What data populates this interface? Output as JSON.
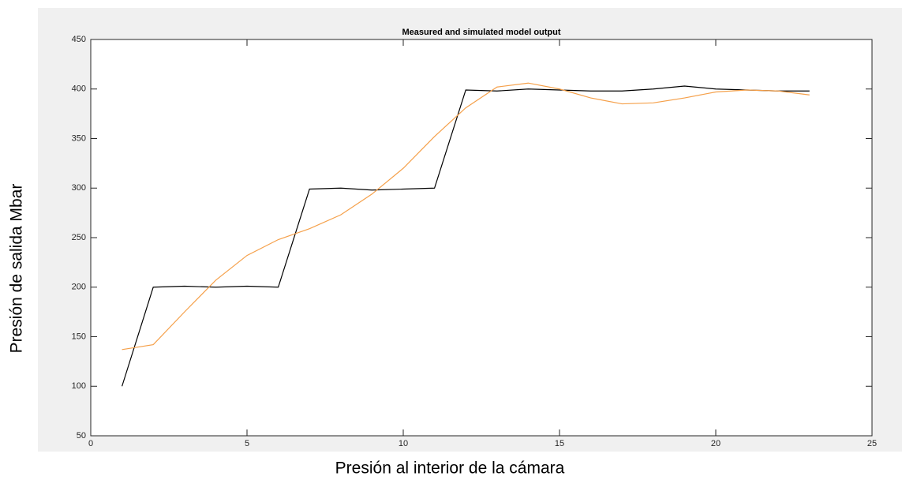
{
  "chart_data": {
    "type": "line",
    "title": "Measured and simulated model output",
    "xlabel": "Presión al interior de la cámara",
    "ylabel": "Presión de salida Mbar",
    "x": [
      1,
      2,
      3,
      4,
      5,
      6,
      7,
      8,
      9,
      10,
      11,
      12,
      13,
      14,
      15,
      16,
      17,
      18,
      19,
      20,
      21,
      22,
      23
    ],
    "series": [
      {
        "color": "#000000",
        "values": [
          100,
          200,
          201,
          200,
          201,
          200,
          299,
          300,
          298,
          299,
          300,
          399,
          398,
          400,
          399,
          398,
          398,
          400,
          403,
          400,
          399,
          398,
          398
        ]
      },
      {
        "color": "#f5a04a",
        "values": [
          137,
          142,
          175,
          207,
          232,
          248,
          259,
          273,
          294,
          320,
          352,
          381,
          402,
          406,
          400,
          391,
          385,
          386,
          391,
          397,
          399,
          398,
          394
        ]
      }
    ],
    "xlim": [
      0,
      25
    ],
    "xticks": [
      0,
      5,
      10,
      15,
      20,
      25
    ],
    "ylim": [
      50,
      450
    ],
    "yticks": [
      50,
      100,
      150,
      200,
      250,
      300,
      350,
      400,
      450
    ]
  }
}
